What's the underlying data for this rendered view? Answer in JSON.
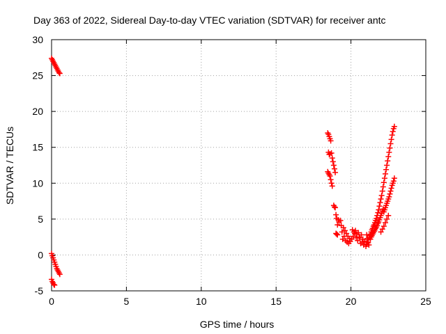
{
  "chart_data": {
    "type": "scatter",
    "title": "Day 363 of 2022, Sidereal Day-to-day VTEC variation (SDTVAR) for receiver antc",
    "xlabel": "GPS time / hours",
    "ylabel": "SDTVAR / TECUs",
    "xlim": [
      0,
      25
    ],
    "ylim": [
      -5,
      30
    ],
    "xticks": [
      0,
      5,
      10,
      15,
      20,
      25
    ],
    "yticks": [
      -5,
      0,
      5,
      10,
      15,
      20,
      25,
      30
    ],
    "xtick_labels": [
      "0",
      "5",
      "10",
      "15",
      "20",
      "25"
    ],
    "ytick_labels": [
      "-5",
      "0",
      "5",
      "10",
      "15",
      "20",
      "25",
      "30"
    ],
    "grid": true,
    "marker": "+",
    "series": [
      {
        "name": "SDTVAR",
        "color": "#ff0000",
        "points": [
          [
            0.0,
            27.4
          ],
          [
            0.05,
            27.2
          ],
          [
            0.1,
            27.0
          ],
          [
            0.15,
            26.8
          ],
          [
            0.2,
            26.6
          ],
          [
            0.25,
            26.4
          ],
          [
            0.3,
            26.2
          ],
          [
            0.35,
            26.0
          ],
          [
            0.4,
            25.8
          ],
          [
            0.45,
            25.6
          ],
          [
            0.5,
            25.4
          ],
          [
            0.55,
            25.3
          ],
          [
            0.0,
            0.2
          ],
          [
            0.05,
            -0.1
          ],
          [
            0.1,
            -0.4
          ],
          [
            0.15,
            -0.7
          ],
          [
            0.2,
            -1.0
          ],
          [
            0.25,
            -1.3
          ],
          [
            0.3,
            -1.6
          ],
          [
            0.35,
            -1.9
          ],
          [
            0.4,
            -2.1
          ],
          [
            0.45,
            -2.3
          ],
          [
            0.5,
            -2.5
          ],
          [
            0.55,
            -2.7
          ],
          [
            0.0,
            -3.4
          ],
          [
            0.05,
            -3.7
          ],
          [
            0.1,
            -3.9
          ],
          [
            0.15,
            -4.1
          ],
          [
            0.2,
            -4.2
          ],
          [
            18.45,
            17.0
          ],
          [
            18.5,
            16.8
          ],
          [
            18.55,
            16.5
          ],
          [
            18.6,
            16.2
          ],
          [
            18.65,
            15.9
          ],
          [
            18.5,
            14.3
          ],
          [
            18.55,
            14.0
          ],
          [
            18.6,
            14.1
          ],
          [
            18.45,
            11.6
          ],
          [
            18.5,
            11.4
          ],
          [
            18.55,
            11.2
          ],
          [
            18.6,
            11.0
          ],
          [
            18.7,
            14.2
          ],
          [
            18.75,
            13.5
          ],
          [
            18.8,
            13.0
          ],
          [
            18.85,
            12.5
          ],
          [
            18.9,
            12.0
          ],
          [
            18.95,
            11.5
          ],
          [
            18.65,
            10.5
          ],
          [
            18.7,
            10.0
          ],
          [
            18.75,
            9.6
          ],
          [
            18.85,
            6.9
          ],
          [
            18.9,
            6.7
          ],
          [
            18.95,
            6.6
          ],
          [
            19.0,
            5.6
          ],
          [
            19.05,
            5.1
          ],
          [
            19.1,
            4.2
          ],
          [
            19.15,
            4.9
          ],
          [
            19.2,
            4.6
          ],
          [
            19.3,
            4.8
          ],
          [
            19.35,
            4.1
          ],
          [
            19.0,
            3.0
          ],
          [
            19.05,
            2.9
          ],
          [
            19.1,
            2.8
          ],
          [
            19.4,
            3.2
          ],
          [
            19.5,
            3.8
          ],
          [
            19.6,
            3.4
          ],
          [
            19.7,
            3.0
          ],
          [
            19.8,
            2.6
          ],
          [
            19.9,
            2.3
          ],
          [
            19.45,
            2.2
          ],
          [
            19.55,
            2.6
          ],
          [
            19.65,
            2.0
          ],
          [
            19.75,
            1.8
          ],
          [
            19.85,
            1.6
          ],
          [
            19.95,
            1.9
          ],
          [
            20.05,
            2.2
          ],
          [
            20.15,
            2.6
          ],
          [
            20.25,
            3.0
          ],
          [
            20.35,
            2.4
          ],
          [
            20.45,
            2.0
          ],
          [
            20.55,
            2.5
          ],
          [
            20.1,
            3.5
          ],
          [
            20.2,
            3.2
          ],
          [
            20.3,
            3.4
          ],
          [
            20.4,
            2.9
          ],
          [
            20.5,
            3.1
          ],
          [
            20.6,
            2.4
          ],
          [
            20.7,
            2.8
          ],
          [
            20.8,
            2.2
          ],
          [
            20.9,
            1.9
          ],
          [
            20.65,
            1.6
          ],
          [
            20.75,
            1.8
          ],
          [
            20.85,
            1.4
          ],
          [
            21.0,
            1.2
          ],
          [
            21.05,
            1.5
          ],
          [
            21.1,
            1.8
          ],
          [
            21.15,
            2.1
          ],
          [
            21.2,
            2.4
          ],
          [
            21.25,
            2.7
          ],
          [
            21.05,
            2.8
          ],
          [
            21.1,
            2.3
          ],
          [
            21.15,
            1.7
          ],
          [
            21.2,
            1.4
          ],
          [
            21.3,
            2.9
          ],
          [
            21.35,
            3.2
          ],
          [
            21.4,
            3.5
          ],
          [
            21.45,
            3.7
          ],
          [
            21.5,
            4.0
          ],
          [
            21.55,
            4.2
          ],
          [
            21.3,
            2.2
          ],
          [
            21.35,
            2.5
          ],
          [
            21.4,
            2.7
          ],
          [
            21.45,
            2.9
          ],
          [
            21.5,
            3.1
          ],
          [
            21.55,
            3.3
          ],
          [
            21.6,
            4.5
          ],
          [
            21.65,
            4.8
          ],
          [
            21.7,
            5.1
          ],
          [
            21.75,
            5.5
          ],
          [
            21.8,
            5.9
          ],
          [
            21.85,
            6.3
          ],
          [
            21.6,
            3.5
          ],
          [
            21.65,
            3.7
          ],
          [
            21.7,
            3.9
          ],
          [
            21.75,
            4.1
          ],
          [
            21.8,
            4.4
          ],
          [
            21.85,
            4.6
          ],
          [
            21.9,
            6.8
          ],
          [
            21.95,
            7.3
          ],
          [
            22.0,
            7.8
          ],
          [
            22.05,
            8.3
          ],
          [
            22.1,
            8.9
          ],
          [
            22.15,
            9.5
          ],
          [
            21.9,
            4.9
          ],
          [
            21.95,
            5.2
          ],
          [
            22.0,
            5.5
          ],
          [
            22.05,
            5.8
          ],
          [
            22.1,
            6.1
          ],
          [
            22.15,
            6.4
          ],
          [
            22.2,
            10.1
          ],
          [
            22.25,
            10.7
          ],
          [
            22.3,
            11.3
          ],
          [
            22.35,
            11.9
          ],
          [
            22.4,
            12.5
          ],
          [
            22.45,
            13.1
          ],
          [
            22.2,
            6.0
          ],
          [
            22.25,
            6.3
          ],
          [
            22.3,
            6.6
          ],
          [
            22.35,
            6.9
          ],
          [
            22.4,
            7.2
          ],
          [
            22.45,
            7.5
          ],
          [
            22.5,
            13.7
          ],
          [
            22.55,
            14.3
          ],
          [
            22.6,
            14.9
          ],
          [
            22.65,
            15.5
          ],
          [
            22.7,
            16.1
          ],
          [
            22.75,
            16.7
          ],
          [
            22.5,
            7.8
          ],
          [
            22.55,
            8.1
          ],
          [
            22.6,
            8.5
          ],
          [
            22.65,
            8.9
          ],
          [
            22.7,
            9.3
          ],
          [
            22.75,
            9.7
          ],
          [
            22.8,
            17.2
          ],
          [
            22.85,
            17.6
          ],
          [
            22.9,
            17.9
          ],
          [
            22.8,
            10.0
          ],
          [
            22.85,
            10.3
          ],
          [
            22.9,
            10.7
          ],
          [
            22.0,
            3.2
          ],
          [
            22.1,
            3.6
          ],
          [
            22.2,
            4.0
          ],
          [
            22.3,
            4.5
          ],
          [
            22.4,
            5.0
          ],
          [
            22.5,
            5.5
          ]
        ]
      }
    ]
  }
}
